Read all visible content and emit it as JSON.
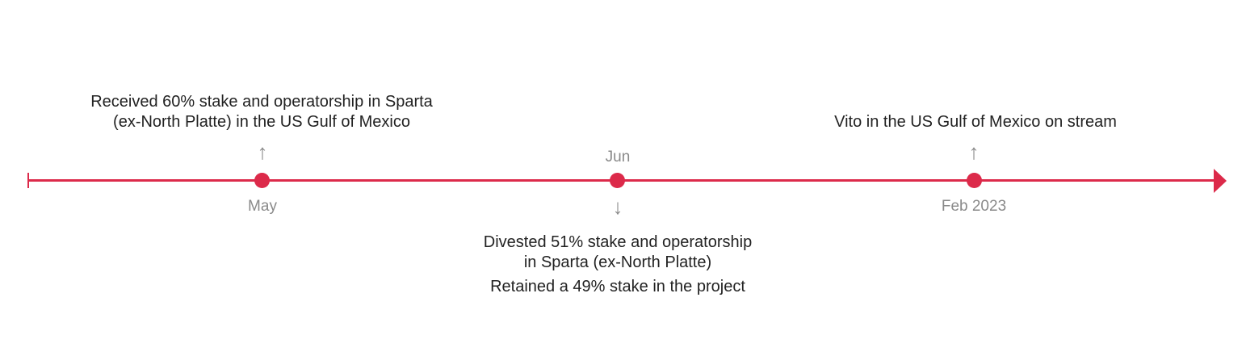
{
  "accent_color": "#dc2a4a",
  "events": [
    {
      "date": "May",
      "direction": "up",
      "lines": [
        "Received 60% stake and operatorship in Sparta",
        "(ex-North Platte) in the US Gulf of Mexico"
      ]
    },
    {
      "date": "Jun",
      "direction": "down",
      "lines": [
        "Divested 51% stake and operatorship",
        "in Sparta (ex-North Platte)",
        "Retained a 49% stake in the project"
      ]
    },
    {
      "date": "Feb 2023",
      "direction": "up",
      "lines": [
        "Vito in the US Gulf of Mexico on stream"
      ]
    }
  ],
  "icons": {
    "up": "arrow-up-icon",
    "down": "arrow-down-icon"
  }
}
